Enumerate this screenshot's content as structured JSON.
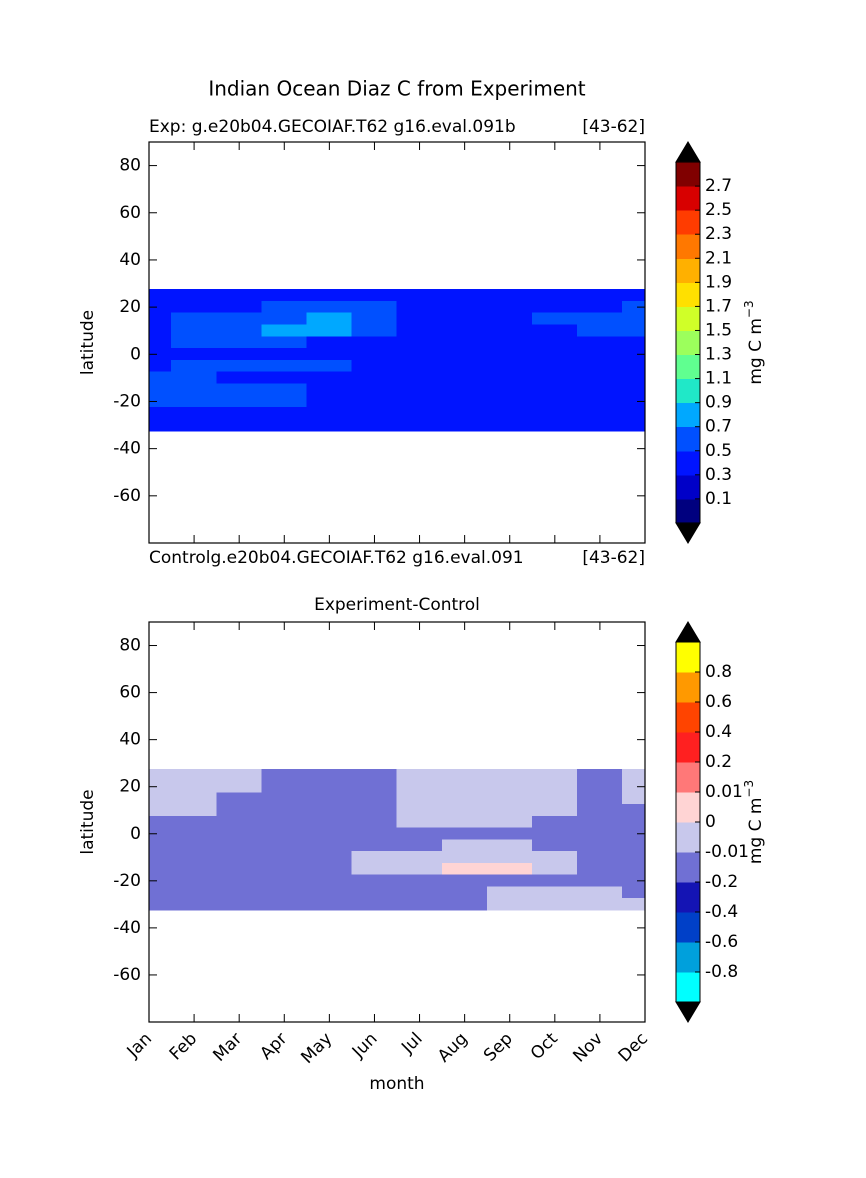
{
  "title": "Indian Ocean Diaz C from Experiment",
  "chart_data": [
    {
      "type": "contour",
      "title_left": "Exp:    g.e20b04.GECOIAF.T62 g16.eval.091b",
      "title_right": "[43-62]",
      "ylabel": "latitude",
      "ylim": [
        -80,
        90
      ],
      "yticks": [
        -60,
        -40,
        -20,
        0,
        20,
        40,
        60,
        80
      ],
      "lat": [
        25,
        20,
        15,
        10,
        5,
        0,
        -5,
        -10,
        -15,
        -20,
        -25,
        -30
      ],
      "z": [
        [
          0.4,
          0.4,
          0.4,
          0.4,
          0.4,
          0.4,
          0.4,
          0.4,
          0.4,
          0.4,
          0.4,
          0.4
        ],
        [
          0.4,
          0.4,
          0.4,
          0.6,
          0.6,
          0.6,
          0.4,
          0.4,
          0.4,
          0.4,
          0.4,
          0.6
        ],
        [
          0.4,
          0.6,
          0.6,
          0.6,
          0.8,
          0.6,
          0.4,
          0.4,
          0.4,
          0.6,
          0.6,
          0.6
        ],
        [
          0.4,
          0.6,
          0.6,
          0.8,
          0.8,
          0.6,
          0.4,
          0.4,
          0.4,
          0.4,
          0.6,
          0.6
        ],
        [
          0.4,
          0.6,
          0.6,
          0.6,
          0.4,
          0.4,
          0.4,
          0.4,
          0.4,
          0.4,
          0.4,
          0.4
        ],
        [
          0.4,
          0.4,
          0.4,
          0.4,
          0.4,
          0.4,
          0.4,
          0.4,
          0.4,
          0.4,
          0.4,
          0.4
        ],
        [
          0.4,
          0.6,
          0.6,
          0.6,
          0.6,
          0.4,
          0.4,
          0.4,
          0.4,
          0.4,
          0.4,
          0.4
        ],
        [
          0.6,
          0.6,
          0.4,
          0.4,
          0.4,
          0.4,
          0.4,
          0.4,
          0.4,
          0.4,
          0.4,
          0.4
        ],
        [
          0.6,
          0.6,
          0.6,
          0.6,
          0.4,
          0.4,
          0.4,
          0.4,
          0.4,
          0.4,
          0.4,
          0.4
        ],
        [
          0.6,
          0.6,
          0.6,
          0.6,
          0.4,
          0.4,
          0.4,
          0.4,
          0.4,
          0.4,
          0.4,
          0.4
        ],
        [
          0.4,
          0.4,
          0.4,
          0.4,
          0.4,
          0.4,
          0.4,
          0.4,
          0.4,
          0.4,
          0.4,
          0.4
        ],
        [
          0.4,
          0.4,
          0.4,
          0.4,
          0.4,
          0.4,
          0.4,
          0.4,
          0.4,
          0.4,
          0.4,
          0.4
        ]
      ],
      "levels": [
        0.1,
        0.3,
        0.5,
        0.7,
        0.9,
        1.1,
        1.3,
        1.5,
        1.7,
        1.9,
        2.1,
        2.3,
        2.5,
        2.7
      ],
      "colors": [
        "#00007f",
        "#0000c8",
        "#0014ff",
        "#0050ff",
        "#00a8ff",
        "#20e8c8",
        "#60ff90",
        "#9cff5c",
        "#d0ff28",
        "#ffe000",
        "#ffb000",
        "#ff7800",
        "#ff3c00",
        "#d80000",
        "#800000"
      ],
      "extend_color": "#000000",
      "colorbar_label": "mg C m",
      "colorbar_label_exponent": "−3"
    },
    {
      "type": "contour",
      "title_left": "Controlg.e20b04.GECOIAF.T62 g16.eval.091",
      "title_right": "[43-62]",
      "title": "Experiment-Control",
      "ylabel": "latitude",
      "xlabel": "month",
      "categories": [
        "Jan",
        "Feb",
        "Mar",
        "Apr",
        "May",
        "Jun",
        "Jul",
        "Aug",
        "Sep",
        "Oct",
        "Nov",
        "Dec"
      ],
      "ylim": [
        -80,
        90
      ],
      "yticks": [
        -60,
        -40,
        -20,
        0,
        20,
        40,
        60,
        80
      ],
      "lat": [
        25,
        20,
        15,
        10,
        5,
        0,
        -5,
        -10,
        -15,
        -20,
        -25,
        -30
      ],
      "z": [
        [
          -0.005,
          -0.005,
          -0.005,
          -0.1,
          -0.1,
          -0.1,
          -0.005,
          -0.005,
          -0.005,
          -0.005,
          -0.1,
          -0.005
        ],
        [
          -0.005,
          -0.005,
          -0.005,
          -0.1,
          -0.1,
          -0.1,
          -0.005,
          -0.005,
          -0.005,
          -0.005,
          -0.1,
          -0.005
        ],
        [
          -0.005,
          -0.005,
          -0.1,
          -0.1,
          -0.1,
          -0.1,
          -0.005,
          -0.005,
          -0.005,
          -0.005,
          -0.1,
          -0.005
        ],
        [
          -0.005,
          -0.005,
          -0.1,
          -0.1,
          -0.1,
          -0.1,
          -0.005,
          -0.005,
          -0.005,
          -0.005,
          -0.1,
          -0.1
        ],
        [
          -0.1,
          -0.1,
          -0.1,
          -0.1,
          -0.1,
          -0.1,
          -0.005,
          -0.005,
          -0.005,
          -0.1,
          -0.1,
          -0.1
        ],
        [
          -0.1,
          -0.1,
          -0.1,
          -0.1,
          -0.1,
          -0.1,
          -0.1,
          -0.1,
          -0.1,
          -0.1,
          -0.1,
          -0.1
        ],
        [
          -0.1,
          -0.1,
          -0.1,
          -0.1,
          -0.1,
          -0.1,
          -0.1,
          -0.005,
          -0.005,
          -0.1,
          -0.1,
          -0.1
        ],
        [
          -0.1,
          -0.1,
          -0.1,
          -0.1,
          -0.1,
          -0.005,
          -0.005,
          -0.005,
          -0.005,
          -0.005,
          -0.1,
          -0.1
        ],
        [
          -0.1,
          -0.1,
          -0.1,
          -0.1,
          -0.1,
          -0.005,
          -0.005,
          0.005,
          0.005,
          -0.005,
          -0.1,
          -0.1
        ],
        [
          -0.1,
          -0.1,
          -0.1,
          -0.1,
          -0.1,
          -0.1,
          -0.1,
          -0.1,
          -0.1,
          -0.1,
          -0.1,
          -0.1
        ],
        [
          -0.1,
          -0.1,
          -0.1,
          -0.1,
          -0.1,
          -0.1,
          -0.1,
          -0.1,
          -0.005,
          -0.005,
          -0.005,
          -0.1
        ],
        [
          -0.1,
          -0.1,
          -0.1,
          -0.1,
          -0.1,
          -0.1,
          -0.1,
          -0.1,
          -0.005,
          -0.005,
          -0.005,
          -0.005
        ]
      ],
      "levels": [
        -0.8,
        -0.6,
        -0.4,
        -0.2,
        -0.01,
        0,
        0.01,
        0.2,
        0.4,
        0.6,
        0.8
      ],
      "colors": [
        "#00ffff",
        "#00a0dc",
        "#0040c8",
        "#1414b4",
        "#7070d4",
        "#c8c8ec",
        "#ffd4d4",
        "#ff7878",
        "#ff2020",
        "#ff4400",
        "#ff9900",
        "#ffff00"
      ],
      "extend_color": "#000000",
      "colorbar_label": "mg C m",
      "colorbar_label_exponent": "−3"
    }
  ]
}
